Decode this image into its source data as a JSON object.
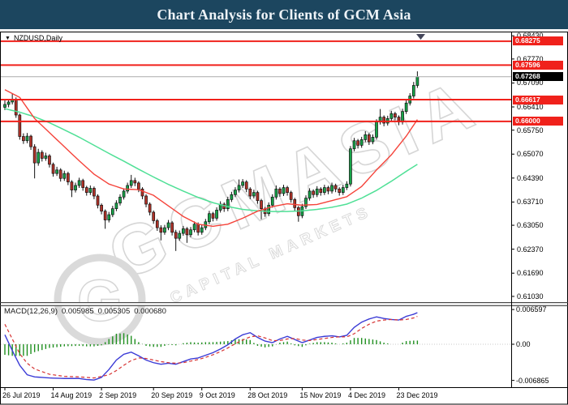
{
  "header": {
    "title": "Chart Analysis for Clients of GCM Asia"
  },
  "chart": {
    "symbol_label": "NZDUSD,Daily",
    "dropdown_icon": "▼",
    "scroll_marker_icon": "▼",
    "watermark": {
      "text": "GCMASIA",
      "subtext": "CAPITAL MARKETS",
      "logo_letter": "G"
    }
  },
  "macd": {
    "label": "MACD(12,26,9)",
    "values": [
      "0.005985",
      "0.005305",
      "0.000680"
    ],
    "axis_labels": [
      "0.006597",
      "0.00",
      "-0.006865"
    ]
  },
  "colors": {
    "titlebar_bg": "#1c465f",
    "level_red": "#f0211b",
    "current_gray": "#b6b6b6",
    "bull_candle": "#16a348",
    "bear_candle": "#b23228",
    "ma_fast": "#f5433a",
    "ma_slow": "#4fe096",
    "macd_main": "#3b3bd6",
    "macd_signal": "#d63333",
    "macd_hist": "#1f8f1f",
    "watermark_stroke": "#d6d6d6"
  },
  "chart_data": {
    "type": "candlestick",
    "symbol": "NZDUSD",
    "timeframe": "Daily",
    "title": "Chart Analysis for Clients of GCM Asia",
    "price_ticks": [
      "0.68430",
      "0.67770",
      "0.67090",
      "0.66410",
      "0.65750",
      "0.65070",
      "0.64390",
      "0.63710",
      "0.63050",
      "0.62370",
      "0.61690",
      "0.61030"
    ],
    "price_tick_values": [
      0.6843,
      0.6777,
      0.6709,
      0.6641,
      0.6575,
      0.6507,
      0.6439,
      0.6371,
      0.6305,
      0.6237,
      0.6169,
      0.6103
    ],
    "horizontal_lines": [
      {
        "price": 0.68275,
        "label": "0.68275"
      },
      {
        "price": 0.67596,
        "label": "0.67596"
      },
      {
        "price": 0.66617,
        "label": "0.66617"
      },
      {
        "price": 0.66,
        "label": "0.66000"
      }
    ],
    "current_price": {
      "price": 0.67268,
      "label": "0.67268"
    },
    "x_ticks": [
      {
        "label": "26 Jul 2019",
        "index": 0
      },
      {
        "label": "14 Aug 2019",
        "index": 13
      },
      {
        "label": "2 Sep 2019",
        "index": 26
      },
      {
        "label": "20 Sep 2019",
        "index": 40
      },
      {
        "label": "9 Oct 2019",
        "index": 53
      },
      {
        "label": "28 Oct 2019",
        "index": 66
      },
      {
        "label": "15 Nov 2019",
        "index": 80
      },
      {
        "label": "4 Dec 2019",
        "index": 93
      },
      {
        "label": "23 Dec 2019",
        "index": 106
      }
    ],
    "candles": [
      [
        0.664,
        0.6663,
        0.6632,
        0.6648
      ],
      [
        0.6648,
        0.6663,
        0.664,
        0.6655
      ],
      [
        0.6655,
        0.6678,
        0.6648,
        0.6662
      ],
      [
        0.6662,
        0.6668,
        0.661,
        0.6618
      ],
      [
        0.6618,
        0.6622,
        0.6548,
        0.6557
      ],
      [
        0.6557,
        0.6566,
        0.6536,
        0.6545
      ],
      [
        0.6545,
        0.6567,
        0.6538,
        0.6558
      ],
      [
        0.6558,
        0.6562,
        0.6519,
        0.6528
      ],
      [
        0.6528,
        0.6535,
        0.6438,
        0.6482
      ],
      [
        0.6482,
        0.6522,
        0.6474,
        0.6512
      ],
      [
        0.6512,
        0.6518,
        0.6486,
        0.6495
      ],
      [
        0.6495,
        0.6511,
        0.6488,
        0.6502
      ],
      [
        0.6502,
        0.6507,
        0.6469,
        0.6478
      ],
      [
        0.6478,
        0.6483,
        0.6443,
        0.6452
      ],
      [
        0.6452,
        0.6471,
        0.6445,
        0.6462
      ],
      [
        0.6462,
        0.6467,
        0.6429,
        0.6438
      ],
      [
        0.6438,
        0.646,
        0.6431,
        0.6452
      ],
      [
        0.6452,
        0.6457,
        0.6419,
        0.6428
      ],
      [
        0.6428,
        0.6433,
        0.6385,
        0.6405
      ],
      [
        0.6405,
        0.6426,
        0.6398,
        0.6418
      ],
      [
        0.6418,
        0.644,
        0.6411,
        0.6432
      ],
      [
        0.6432,
        0.6437,
        0.6403,
        0.6412
      ],
      [
        0.6412,
        0.6417,
        0.6389,
        0.6398
      ],
      [
        0.6398,
        0.6418,
        0.6391,
        0.641
      ],
      [
        0.641,
        0.6415,
        0.6379,
        0.6388
      ],
      [
        0.6388,
        0.6393,
        0.6353,
        0.6362
      ],
      [
        0.6362,
        0.6367,
        0.6336,
        0.6345
      ],
      [
        0.6345,
        0.635,
        0.6295,
        0.632
      ],
      [
        0.632,
        0.6343,
        0.6313,
        0.6335
      ],
      [
        0.6335,
        0.636,
        0.6328,
        0.6352
      ],
      [
        0.6352,
        0.6376,
        0.6345,
        0.6368
      ],
      [
        0.6368,
        0.6393,
        0.6361,
        0.6385
      ],
      [
        0.6385,
        0.641,
        0.6378,
        0.6402
      ],
      [
        0.6402,
        0.6426,
        0.6395,
        0.6418
      ],
      [
        0.6418,
        0.6448,
        0.6411,
        0.6432
      ],
      [
        0.6432,
        0.644,
        0.6416,
        0.6425
      ],
      [
        0.6425,
        0.643,
        0.6399,
        0.6408
      ],
      [
        0.6408,
        0.6413,
        0.6379,
        0.6388
      ],
      [
        0.6388,
        0.6393,
        0.6356,
        0.6365
      ],
      [
        0.6365,
        0.637,
        0.6333,
        0.6342
      ],
      [
        0.6342,
        0.6347,
        0.6309,
        0.6318
      ],
      [
        0.6318,
        0.6323,
        0.6289,
        0.6298
      ],
      [
        0.6298,
        0.6305,
        0.6262,
        0.6285
      ],
      [
        0.6285,
        0.6306,
        0.6278,
        0.6298
      ],
      [
        0.6298,
        0.632,
        0.6291,
        0.6312
      ],
      [
        0.6312,
        0.6317,
        0.6276,
        0.6285
      ],
      [
        0.6285,
        0.6292,
        0.6232,
        0.6268
      ],
      [
        0.6268,
        0.629,
        0.6261,
        0.6282
      ],
      [
        0.6282,
        0.6303,
        0.6275,
        0.6295
      ],
      [
        0.6295,
        0.63,
        0.6255,
        0.6278
      ],
      [
        0.6278,
        0.63,
        0.6271,
        0.6292
      ],
      [
        0.6292,
        0.6316,
        0.6285,
        0.6308
      ],
      [
        0.6308,
        0.6313,
        0.6276,
        0.6285
      ],
      [
        0.6285,
        0.6306,
        0.6278,
        0.6298
      ],
      [
        0.6298,
        0.6323,
        0.6291,
        0.6315
      ],
      [
        0.6315,
        0.6346,
        0.6308,
        0.6338
      ],
      [
        0.6338,
        0.6343,
        0.6316,
        0.6325
      ],
      [
        0.6325,
        0.6356,
        0.6318,
        0.6348
      ],
      [
        0.6348,
        0.6373,
        0.6341,
        0.6365
      ],
      [
        0.6365,
        0.637,
        0.6343,
        0.6352
      ],
      [
        0.6352,
        0.6386,
        0.6345,
        0.6378
      ],
      [
        0.6378,
        0.64,
        0.6371,
        0.6392
      ],
      [
        0.6392,
        0.6413,
        0.6385,
        0.6405
      ],
      [
        0.6405,
        0.6435,
        0.6398,
        0.6418
      ],
      [
        0.6418,
        0.6436,
        0.6411,
        0.6428
      ],
      [
        0.6428,
        0.6433,
        0.6399,
        0.6408
      ],
      [
        0.6408,
        0.6413,
        0.6379,
        0.6388
      ],
      [
        0.6388,
        0.6406,
        0.6381,
        0.6398
      ],
      [
        0.6398,
        0.6403,
        0.6366,
        0.6375
      ],
      [
        0.6375,
        0.638,
        0.6322,
        0.6352
      ],
      [
        0.6352,
        0.6357,
        0.6329,
        0.6338
      ],
      [
        0.6338,
        0.637,
        0.6331,
        0.6362
      ],
      [
        0.6362,
        0.6393,
        0.6355,
        0.6385
      ],
      [
        0.6385,
        0.6418,
        0.6378,
        0.6408
      ],
      [
        0.6408,
        0.6413,
        0.6386,
        0.6395
      ],
      [
        0.6395,
        0.642,
        0.6388,
        0.6412
      ],
      [
        0.6412,
        0.6417,
        0.6389,
        0.6398
      ],
      [
        0.6398,
        0.6403,
        0.6369,
        0.6378
      ],
      [
        0.6378,
        0.6383,
        0.6346,
        0.6355
      ],
      [
        0.6355,
        0.636,
        0.6315,
        0.6332
      ],
      [
        0.6332,
        0.6366,
        0.6325,
        0.6358
      ],
      [
        0.6358,
        0.639,
        0.6351,
        0.6382
      ],
      [
        0.6382,
        0.641,
        0.6375,
        0.6402
      ],
      [
        0.6402,
        0.6407,
        0.6383,
        0.6392
      ],
      [
        0.6392,
        0.6416,
        0.6385,
        0.6408
      ],
      [
        0.6408,
        0.6413,
        0.6389,
        0.6398
      ],
      [
        0.6398,
        0.642,
        0.6391,
        0.6412
      ],
      [
        0.6412,
        0.6417,
        0.6393,
        0.6402
      ],
      [
        0.6402,
        0.6426,
        0.6395,
        0.6418
      ],
      [
        0.6418,
        0.6423,
        0.6399,
        0.6408
      ],
      [
        0.6408,
        0.6413,
        0.6389,
        0.6398
      ],
      [
        0.6398,
        0.642,
        0.6391,
        0.6412
      ],
      [
        0.6412,
        0.643,
        0.6405,
        0.6422
      ],
      [
        0.6422,
        0.653,
        0.6415,
        0.6522
      ],
      [
        0.6522,
        0.6553,
        0.6515,
        0.6545
      ],
      [
        0.6545,
        0.655,
        0.6523,
        0.6532
      ],
      [
        0.6532,
        0.6556,
        0.6525,
        0.6548
      ],
      [
        0.6548,
        0.6572,
        0.6541,
        0.6562
      ],
      [
        0.6562,
        0.6567,
        0.6533,
        0.6542
      ],
      [
        0.6542,
        0.6563,
        0.6535,
        0.6555
      ],
      [
        0.6555,
        0.6606,
        0.6548,
        0.6598
      ],
      [
        0.6598,
        0.6635,
        0.6591,
        0.6612
      ],
      [
        0.6612,
        0.6617,
        0.6586,
        0.6595
      ],
      [
        0.6595,
        0.6616,
        0.6588,
        0.6608
      ],
      [
        0.6608,
        0.663,
        0.6601,
        0.6622
      ],
      [
        0.6622,
        0.6627,
        0.6603,
        0.6612
      ],
      [
        0.6612,
        0.6617,
        0.6589,
        0.6598
      ],
      [
        0.6598,
        0.6636,
        0.6591,
        0.6628
      ],
      [
        0.6628,
        0.666,
        0.6621,
        0.6652
      ],
      [
        0.6652,
        0.668,
        0.6645,
        0.6672
      ],
      [
        0.6672,
        0.6712,
        0.6665,
        0.6702
      ],
      [
        0.6702,
        0.6742,
        0.6695,
        0.6727
      ]
    ],
    "ma_fast_red": [
      [
        0,
        0.669
      ],
      [
        4,
        0.6668
      ],
      [
        8,
        0.6608
      ],
      [
        12,
        0.6568
      ],
      [
        16,
        0.6528
      ],
      [
        20,
        0.6488
      ],
      [
        24,
        0.645
      ],
      [
        28,
        0.6422
      ],
      [
        32,
        0.6408
      ],
      [
        36,
        0.6406
      ],
      [
        40,
        0.639
      ],
      [
        44,
        0.636
      ],
      [
        48,
        0.633
      ],
      [
        52,
        0.6308
      ],
      [
        56,
        0.6302
      ],
      [
        60,
        0.6308
      ],
      [
        64,
        0.6325
      ],
      [
        68,
        0.6345
      ],
      [
        72,
        0.6358
      ],
      [
        76,
        0.6366
      ],
      [
        80,
        0.6362
      ],
      [
        84,
        0.6364
      ],
      [
        88,
        0.6375
      ],
      [
        92,
        0.6386
      ],
      [
        96,
        0.6415
      ],
      [
        100,
        0.6462
      ],
      [
        104,
        0.6505
      ],
      [
        108,
        0.6558
      ],
      [
        111,
        0.6605
      ]
    ],
    "ma_slow_green": [
      [
        0,
        0.6636
      ],
      [
        4,
        0.6626
      ],
      [
        8,
        0.6613
      ],
      [
        12,
        0.6596
      ],
      [
        16,
        0.6576
      ],
      [
        20,
        0.6555
      ],
      [
        24,
        0.6532
      ],
      [
        28,
        0.6509
      ],
      [
        32,
        0.6487
      ],
      [
        36,
        0.6464
      ],
      [
        40,
        0.6442
      ],
      [
        44,
        0.6421
      ],
      [
        48,
        0.6402
      ],
      [
        52,
        0.6384
      ],
      [
        56,
        0.6369
      ],
      [
        60,
        0.6358
      ],
      [
        64,
        0.635
      ],
      [
        68,
        0.6346
      ],
      [
        72,
        0.6344
      ],
      [
        76,
        0.6344
      ],
      [
        80,
        0.6346
      ],
      [
        84,
        0.635
      ],
      [
        88,
        0.6356
      ],
      [
        92,
        0.6365
      ],
      [
        96,
        0.6382
      ],
      [
        100,
        0.6404
      ],
      [
        104,
        0.643
      ],
      [
        108,
        0.6458
      ],
      [
        111,
        0.6478
      ]
    ],
    "macd": {
      "label": "MACD(12,26,9)",
      "current_values": [
        0.005985,
        0.005305,
        0.00068
      ],
      "axis_top": 0.006597,
      "axis_zero": 0.0,
      "axis_bottom": -0.006865,
      "main": [
        [
          0,
          0.0018
        ],
        [
          2,
          -0.0012
        ],
        [
          4,
          -0.004
        ],
        [
          6,
          -0.0058
        ],
        [
          8,
          -0.0062
        ],
        [
          12,
          -0.0064
        ],
        [
          16,
          -0.0065
        ],
        [
          20,
          -0.0065
        ],
        [
          22,
          -0.0067
        ],
        [
          24,
          -0.0068
        ],
        [
          26,
          -0.0063
        ],
        [
          28,
          -0.0048
        ],
        [
          30,
          -0.003
        ],
        [
          32,
          -0.0019
        ],
        [
          34,
          -0.0015
        ],
        [
          36,
          -0.0022
        ],
        [
          38,
          -0.003
        ],
        [
          40,
          -0.0035
        ],
        [
          42,
          -0.0038
        ],
        [
          44,
          -0.0036
        ],
        [
          46,
          -0.0038
        ],
        [
          48,
          -0.0033
        ],
        [
          50,
          -0.0028
        ],
        [
          52,
          -0.0026
        ],
        [
          54,
          -0.0021
        ],
        [
          56,
          -0.0016
        ],
        [
          58,
          -0.0009
        ],
        [
          60,
          -0.0001
        ],
        [
          62,
          0.001
        ],
        [
          64,
          0.0018
        ],
        [
          66,
          0.0022
        ],
        [
          68,
          0.0013
        ],
        [
          70,
          0.0006
        ],
        [
          72,
          0.0003
        ],
        [
          74,
          0.001
        ],
        [
          76,
          0.0015
        ],
        [
          78,
          0.0009
        ],
        [
          80,
          0.0003
        ],
        [
          82,
          0.0008
        ],
        [
          84,
          0.0013
        ],
        [
          86,
          0.0015
        ],
        [
          88,
          0.0016
        ],
        [
          90,
          0.0014
        ],
        [
          92,
          0.0017
        ],
        [
          94,
          0.0032
        ],
        [
          96,
          0.0042
        ],
        [
          98,
          0.0048
        ],
        [
          100,
          0.0052
        ],
        [
          102,
          0.0049
        ],
        [
          104,
          0.0047
        ],
        [
          106,
          0.0046
        ],
        [
          108,
          0.0053
        ],
        [
          110,
          0.0057
        ],
        [
          111,
          0.006
        ]
      ],
      "signal": [
        [
          0,
          0.0038
        ],
        [
          2,
          0.001
        ],
        [
          4,
          -0.0018
        ],
        [
          6,
          -0.0036
        ],
        [
          8,
          -0.0047
        ],
        [
          12,
          -0.0057
        ],
        [
          16,
          -0.0061
        ],
        [
          20,
          -0.0062
        ],
        [
          24,
          -0.0064
        ],
        [
          28,
          -0.0058
        ],
        [
          30,
          -0.005
        ],
        [
          32,
          -0.004
        ],
        [
          34,
          -0.0031
        ],
        [
          36,
          -0.0026
        ],
        [
          38,
          -0.0027
        ],
        [
          40,
          -0.003
        ],
        [
          42,
          -0.0033
        ],
        [
          44,
          -0.0035
        ],
        [
          46,
          -0.0036
        ],
        [
          48,
          -0.0035
        ],
        [
          50,
          -0.0032
        ],
        [
          52,
          -0.0029
        ],
        [
          54,
          -0.0025
        ],
        [
          56,
          -0.002
        ],
        [
          58,
          -0.0014
        ],
        [
          60,
          -0.0007
        ],
        [
          62,
          0.0001
        ],
        [
          64,
          0.0008
        ],
        [
          66,
          0.0014
        ],
        [
          68,
          0.0016
        ],
        [
          70,
          0.0012
        ],
        [
          72,
          0.0007
        ],
        [
          74,
          0.0007
        ],
        [
          76,
          0.001
        ],
        [
          78,
          0.0011
        ],
        [
          80,
          0.0008
        ],
        [
          82,
          0.0007
        ],
        [
          84,
          0.0009
        ],
        [
          86,
          0.0011
        ],
        [
          88,
          0.0013
        ],
        [
          90,
          0.0014
        ],
        [
          92,
          0.0014
        ],
        [
          94,
          0.002
        ],
        [
          96,
          0.003
        ],
        [
          98,
          0.0038
        ],
        [
          100,
          0.0044
        ],
        [
          102,
          0.0046
        ],
        [
          104,
          0.0047
        ],
        [
          106,
          0.0046
        ],
        [
          108,
          0.0047
        ],
        [
          110,
          0.005
        ],
        [
          111,
          0.0053
        ]
      ]
    }
  }
}
